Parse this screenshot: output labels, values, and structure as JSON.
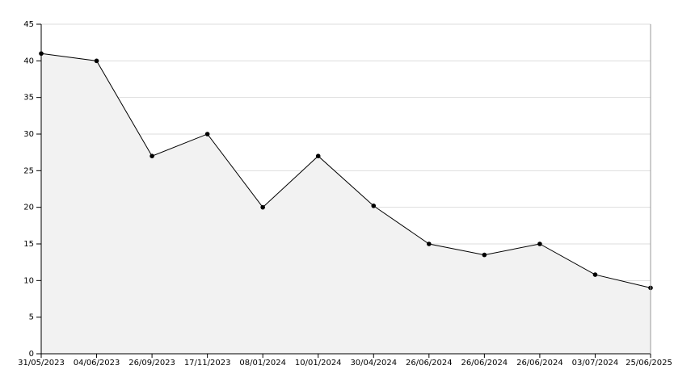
{
  "chart_data": {
    "type": "line",
    "categories": [
      "31/05/2023",
      "04/06/2023",
      "26/09/2023",
      "17/11/2023",
      "08/01/2024",
      "10/01/2024",
      "30/04/2024",
      "26/06/2024",
      "26/06/2024",
      "26/06/2024",
      "03/07/2024",
      "25/06/2025"
    ],
    "values": [
      41,
      40,
      27,
      30,
      20,
      27,
      20.2,
      15,
      13.5,
      15,
      10.8,
      9
    ],
    "color": "#000000",
    "fill": "#f2f2f2",
    "ylim": [
      0,
      45
    ],
    "yticks": [
      0,
      5,
      10,
      15,
      20,
      25,
      30,
      35,
      40,
      45
    ],
    "grid": true
  }
}
